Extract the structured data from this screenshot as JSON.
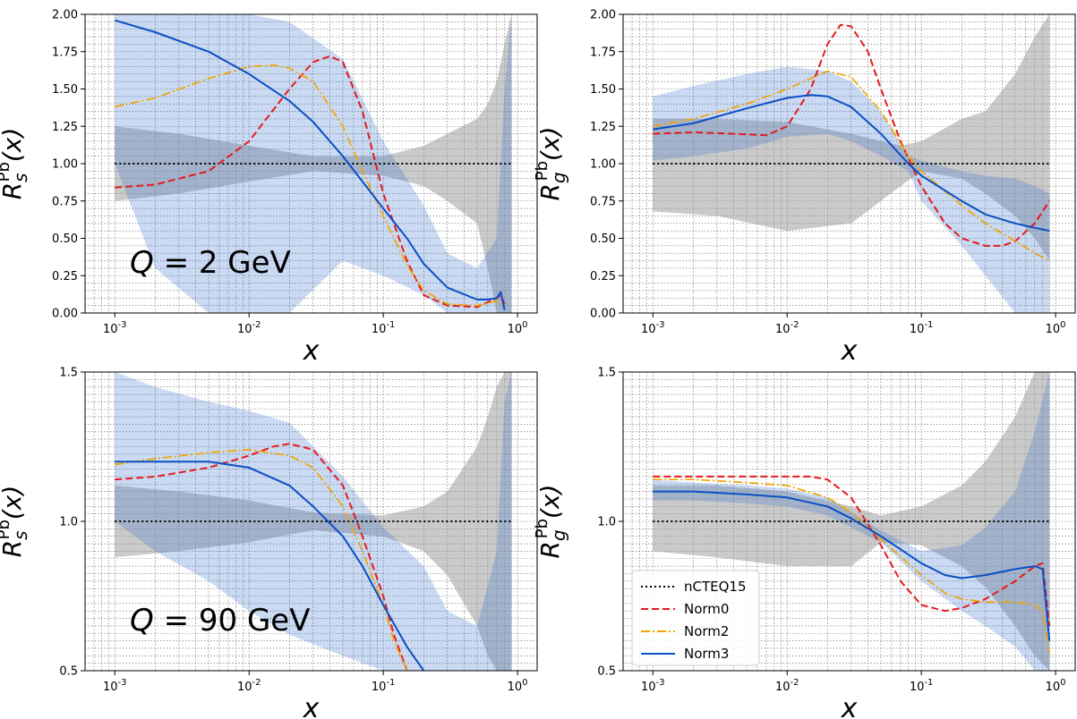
{
  "chart_data": [
    {
      "type": "line",
      "panel": "Rs-2GeV",
      "xscale": "log",
      "xlim": [
        0.0006,
        1.4
      ],
      "ylim": [
        0.0,
        2.0
      ],
      "yticks": [
        "0.00",
        "0.25",
        "0.50",
        "0.75",
        "1.00",
        "1.25",
        "1.50",
        "1.75",
        "2.00"
      ],
      "xticks": [
        "10^-3",
        "10^-2",
        "10^-1",
        "10^0"
      ],
      "xlabel": "x",
      "ylabel": {
        "base": "R",
        "sub": "s",
        "sup": "Pb",
        "arg": "(x)"
      },
      "annotation": "Q = 2 GeV",
      "grid": true,
      "bands": [
        {
          "name": "nCTEQ15",
          "color": "#9e9e9e",
          "opacity": 0.55,
          "x": [
            0.001,
            0.003,
            0.01,
            0.03,
            0.1,
            0.2,
            0.3,
            0.5,
            0.6,
            0.7,
            0.8,
            0.9
          ],
          "upper": [
            1.25,
            1.2,
            1.12,
            1.05,
            1.05,
            1.12,
            1.2,
            1.3,
            1.4,
            1.55,
            1.8,
            2.0
          ],
          "lower": [
            0.75,
            0.8,
            0.88,
            0.95,
            0.92,
            0.85,
            0.75,
            0.6,
            0.3,
            0.0,
            0.0,
            0.0
          ]
        },
        {
          "name": "Norm3",
          "color": "#2f6bd1",
          "opacity": 0.25,
          "x": [
            0.001,
            0.002,
            0.005,
            0.01,
            0.02,
            0.05,
            0.1,
            0.2,
            0.3,
            0.5,
            0.7,
            0.8,
            0.9
          ],
          "upper": [
            2.0,
            2.0,
            2.0,
            2.0,
            1.95,
            1.7,
            1.15,
            0.72,
            0.4,
            0.3,
            0.5,
            1.5,
            2.0
          ],
          "lower": [
            1.0,
            0.3,
            0.0,
            0.0,
            0.0,
            0.35,
            0.25,
            0.12,
            0.0,
            0.0,
            0.0,
            0.0,
            0.0
          ]
        }
      ],
      "series": [
        {
          "name": "nCTEQ15",
          "x": [
            0.001,
            0.9
          ],
          "y": [
            1.0,
            1.0
          ]
        },
        {
          "name": "Norm0",
          "x": [
            0.001,
            0.002,
            0.005,
            0.01,
            0.02,
            0.03,
            0.04,
            0.05,
            0.07,
            0.1,
            0.15,
            0.2,
            0.3,
            0.5,
            0.7,
            0.75,
            0.8
          ],
          "y": [
            0.84,
            0.86,
            0.95,
            1.15,
            1.5,
            1.68,
            1.72,
            1.68,
            1.35,
            0.8,
            0.35,
            0.12,
            0.05,
            0.04,
            0.1,
            0.12,
            0.06
          ]
        },
        {
          "name": "Norm2",
          "x": [
            0.001,
            0.002,
            0.005,
            0.01,
            0.015,
            0.02,
            0.03,
            0.05,
            0.07,
            0.1,
            0.15,
            0.2,
            0.3,
            0.5,
            0.7,
            0.8
          ],
          "y": [
            1.38,
            1.44,
            1.57,
            1.65,
            1.66,
            1.64,
            1.55,
            1.25,
            0.95,
            0.65,
            0.32,
            0.15,
            0.06,
            0.05,
            0.08,
            0.05
          ]
        },
        {
          "name": "Norm3",
          "x": [
            0.001,
            0.002,
            0.005,
            0.01,
            0.02,
            0.03,
            0.05,
            0.07,
            0.1,
            0.15,
            0.2,
            0.3,
            0.5,
            0.6,
            0.7,
            0.75,
            0.8
          ],
          "y": [
            1.96,
            1.88,
            1.75,
            1.6,
            1.42,
            1.28,
            1.05,
            0.88,
            0.7,
            0.5,
            0.33,
            0.17,
            0.09,
            0.09,
            0.1,
            0.14,
            0.02
          ]
        }
      ]
    },
    {
      "type": "line",
      "panel": "Rg-2GeV",
      "xscale": "log",
      "xlim": [
        0.0006,
        1.4
      ],
      "ylim": [
        0.0,
        2.0
      ],
      "yticks": [
        "0.00",
        "0.25",
        "0.50",
        "0.75",
        "1.00",
        "1.25",
        "1.50",
        "1.75",
        "2.00"
      ],
      "xticks": [
        "10^-3",
        "10^-2",
        "10^-1",
        "10^0"
      ],
      "xlabel": "x",
      "ylabel": {
        "base": "R",
        "sub": "g",
        "sup": "Pb",
        "arg": "(x)"
      },
      "grid": true,
      "bands": [
        {
          "name": "nCTEQ15",
          "color": "#9e9e9e",
          "opacity": 0.55,
          "x": [
            0.001,
            0.003,
            0.01,
            0.03,
            0.07,
            0.1,
            0.2,
            0.3,
            0.5,
            0.7,
            0.9
          ],
          "upper": [
            1.3,
            1.3,
            1.28,
            1.2,
            1.12,
            1.15,
            1.3,
            1.35,
            1.6,
            1.85,
            2.0
          ],
          "lower": [
            0.68,
            0.65,
            0.55,
            0.6,
            0.85,
            0.95,
            0.9,
            0.8,
            0.65,
            0.5,
            0.35
          ]
        },
        {
          "name": "Norm3",
          "color": "#2f6bd1",
          "opacity": 0.25,
          "x": [
            0.001,
            0.002,
            0.005,
            0.01,
            0.02,
            0.03,
            0.05,
            0.08,
            0.1,
            0.2,
            0.3,
            0.5,
            0.7,
            0.9
          ],
          "upper": [
            1.45,
            1.52,
            1.6,
            1.65,
            1.62,
            1.55,
            1.35,
            1.05,
            1.02,
            0.95,
            0.92,
            0.9,
            0.85,
            0.8
          ],
          "lower": [
            1.02,
            1.05,
            1.1,
            1.18,
            1.2,
            1.15,
            1.05,
            0.95,
            0.75,
            0.45,
            0.25,
            0.0,
            0.0,
            0.0
          ]
        }
      ],
      "series": [
        {
          "name": "nCTEQ15",
          "x": [
            0.001,
            0.9
          ],
          "y": [
            1.0,
            1.0
          ]
        },
        {
          "name": "Norm0",
          "x": [
            0.001,
            0.002,
            0.004,
            0.007,
            0.01,
            0.015,
            0.02,
            0.025,
            0.03,
            0.04,
            0.05,
            0.07,
            0.1,
            0.15,
            0.2,
            0.3,
            0.4,
            0.5,
            0.7,
            0.9
          ],
          "y": [
            1.2,
            1.21,
            1.2,
            1.19,
            1.25,
            1.5,
            1.8,
            1.93,
            1.92,
            1.75,
            1.5,
            1.15,
            0.85,
            0.6,
            0.5,
            0.45,
            0.45,
            0.48,
            0.6,
            0.75
          ]
        },
        {
          "name": "Norm2",
          "x": [
            0.001,
            0.002,
            0.005,
            0.01,
            0.02,
            0.03,
            0.05,
            0.08,
            0.1,
            0.2,
            0.3,
            0.5,
            0.7,
            0.9
          ],
          "y": [
            1.25,
            1.3,
            1.4,
            1.5,
            1.62,
            1.58,
            1.35,
            1.05,
            0.95,
            0.72,
            0.6,
            0.48,
            0.4,
            0.35
          ]
        },
        {
          "name": "Norm3",
          "x": [
            0.001,
            0.002,
            0.005,
            0.01,
            0.015,
            0.02,
            0.03,
            0.05,
            0.08,
            0.1,
            0.2,
            0.3,
            0.5,
            0.7,
            0.9
          ],
          "y": [
            1.23,
            1.27,
            1.37,
            1.44,
            1.46,
            1.45,
            1.38,
            1.2,
            1.0,
            0.92,
            0.75,
            0.66,
            0.6,
            0.57,
            0.55
          ]
        }
      ]
    },
    {
      "type": "line",
      "panel": "Rs-90GeV",
      "xscale": "log",
      "xlim": [
        0.0006,
        1.4
      ],
      "ylim": [
        0.5,
        1.5
      ],
      "yticks": [
        "0.5",
        "1.0",
        "1.5"
      ],
      "xticks": [
        "10^-3",
        "10^-2",
        "10^-1",
        "10^0"
      ],
      "xlabel": "x",
      "ylabel": {
        "base": "R",
        "sub": "s",
        "sup": "Pb",
        "arg": "(x)"
      },
      "annotation": "Q = 90 GeV",
      "grid": true,
      "bands": [
        {
          "name": "nCTEQ15",
          "color": "#9e9e9e",
          "opacity": 0.55,
          "x": [
            0.001,
            0.003,
            0.01,
            0.03,
            0.1,
            0.2,
            0.3,
            0.5,
            0.6,
            0.7,
            0.8,
            0.9
          ],
          "upper": [
            1.12,
            1.1,
            1.07,
            1.03,
            1.02,
            1.05,
            1.1,
            1.25,
            1.35,
            1.45,
            1.5,
            1.5
          ],
          "lower": [
            0.88,
            0.9,
            0.93,
            0.97,
            0.95,
            0.9,
            0.82,
            0.65,
            0.55,
            0.5,
            0.5,
            0.5
          ]
        },
        {
          "name": "Norm3",
          "color": "#2f6bd1",
          "opacity": 0.25,
          "x": [
            0.001,
            0.002,
            0.005,
            0.01,
            0.02,
            0.05,
            0.1,
            0.2,
            0.3,
            0.5,
            0.7,
            0.8,
            0.9
          ],
          "upper": [
            1.5,
            1.45,
            1.4,
            1.37,
            1.33,
            1.15,
            0.98,
            0.85,
            0.7,
            0.65,
            0.9,
            1.4,
            1.5
          ],
          "lower": [
            1.0,
            0.9,
            0.8,
            0.7,
            0.62,
            0.55,
            0.5,
            0.5,
            0.5,
            0.5,
            0.5,
            0.5,
            0.5
          ]
        }
      ],
      "series": [
        {
          "name": "nCTEQ15",
          "x": [
            0.001,
            0.9
          ],
          "y": [
            1.0,
            1.0
          ]
        },
        {
          "name": "Norm0",
          "x": [
            0.001,
            0.002,
            0.005,
            0.01,
            0.015,
            0.02,
            0.03,
            0.05,
            0.07,
            0.1,
            0.12,
            0.15
          ],
          "y": [
            1.14,
            1.15,
            1.18,
            1.22,
            1.25,
            1.26,
            1.24,
            1.12,
            0.95,
            0.75,
            0.62,
            0.5
          ]
        },
        {
          "name": "Norm2",
          "x": [
            0.001,
            0.002,
            0.005,
            0.01,
            0.02,
            0.03,
            0.05,
            0.07,
            0.1,
            0.12,
            0.15
          ],
          "y": [
            1.19,
            1.21,
            1.23,
            1.24,
            1.22,
            1.18,
            1.05,
            0.9,
            0.72,
            0.6,
            0.5
          ]
        },
        {
          "name": "Norm3",
          "x": [
            0.001,
            0.002,
            0.005,
            0.01,
            0.02,
            0.03,
            0.05,
            0.07,
            0.1,
            0.15,
            0.2
          ],
          "y": [
            1.2,
            1.2,
            1.2,
            1.18,
            1.12,
            1.05,
            0.95,
            0.85,
            0.72,
            0.58,
            0.5
          ]
        }
      ]
    },
    {
      "type": "line",
      "panel": "Rg-90GeV",
      "xscale": "log",
      "xlim": [
        0.0006,
        1.4
      ],
      "ylim": [
        0.5,
        1.5
      ],
      "yticks": [
        "0.5",
        "1.0",
        "1.5"
      ],
      "xticks": [
        "10^-3",
        "10^-2",
        "10^-1",
        "10^0"
      ],
      "xlabel": "x",
      "ylabel": {
        "base": "R",
        "sub": "g",
        "sup": "Pb",
        "arg": "(x)"
      },
      "legend": "lower-left",
      "grid": true,
      "bands": [
        {
          "name": "nCTEQ15",
          "color": "#9e9e9e",
          "opacity": 0.55,
          "x": [
            0.001,
            0.003,
            0.01,
            0.03,
            0.05,
            0.1,
            0.2,
            0.3,
            0.5,
            0.7,
            0.9
          ],
          "upper": [
            1.12,
            1.12,
            1.1,
            1.05,
            1.02,
            1.05,
            1.12,
            1.2,
            1.35,
            1.5,
            1.5
          ],
          "lower": [
            0.9,
            0.88,
            0.85,
            0.85,
            0.93,
            0.92,
            0.85,
            0.78,
            0.65,
            0.55,
            0.5
          ]
        },
        {
          "name": "Norm3",
          "color": "#2f6bd1",
          "opacity": 0.25,
          "x": [
            0.001,
            0.002,
            0.005,
            0.01,
            0.02,
            0.05,
            0.1,
            0.2,
            0.3,
            0.5,
            0.7,
            0.9
          ],
          "upper": [
            1.14,
            1.13,
            1.12,
            1.11,
            1.08,
            0.97,
            0.9,
            0.92,
            0.98,
            1.1,
            1.3,
            1.5
          ],
          "lower": [
            1.07,
            1.07,
            1.06,
            1.05,
            1.02,
            0.93,
            0.8,
            0.7,
            0.65,
            0.58,
            0.5,
            0.5
          ]
        }
      ],
      "series": [
        {
          "name": "nCTEQ15",
          "x": [
            0.001,
            0.9
          ],
          "y": [
            1.0,
            1.0
          ]
        },
        {
          "name": "Norm0",
          "x": [
            0.001,
            0.002,
            0.005,
            0.01,
            0.015,
            0.02,
            0.03,
            0.05,
            0.07,
            0.1,
            0.15,
            0.2,
            0.3,
            0.5,
            0.7,
            0.8,
            0.9
          ],
          "y": [
            1.15,
            1.15,
            1.15,
            1.15,
            1.15,
            1.14,
            1.08,
            0.92,
            0.8,
            0.72,
            0.7,
            0.71,
            0.74,
            0.8,
            0.85,
            0.86,
            0.65
          ]
        },
        {
          "name": "Norm2",
          "x": [
            0.001,
            0.002,
            0.005,
            0.01,
            0.02,
            0.03,
            0.05,
            0.1,
            0.15,
            0.2,
            0.3,
            0.5,
            0.7,
            0.8,
            0.9
          ],
          "y": [
            1.14,
            1.14,
            1.13,
            1.12,
            1.08,
            1.03,
            0.94,
            0.82,
            0.76,
            0.74,
            0.73,
            0.73,
            0.72,
            0.7,
            0.56
          ]
        },
        {
          "name": "Norm3",
          "x": [
            0.001,
            0.002,
            0.005,
            0.01,
            0.02,
            0.03,
            0.05,
            0.1,
            0.15,
            0.2,
            0.3,
            0.5,
            0.7,
            0.8,
            0.9
          ],
          "y": [
            1.1,
            1.1,
            1.09,
            1.08,
            1.05,
            1.01,
            0.95,
            0.86,
            0.82,
            0.81,
            0.82,
            0.84,
            0.85,
            0.84,
            0.6
          ]
        }
      ]
    }
  ],
  "legend": [
    {
      "label": "nCTEQ15",
      "color": "#000000",
      "dash": "2,3"
    },
    {
      "label": "Norm0",
      "color": "#e41a1c",
      "dash": "8,4"
    },
    {
      "label": "Norm2",
      "color": "#f0a500",
      "dash": "10,3,2,3"
    },
    {
      "label": "Norm3",
      "color": "#0b4fc4",
      "dash": ""
    }
  ],
  "styles": {
    "nCTEQ15": {
      "color": "#000000",
      "dash": "2,3",
      "width": 2
    },
    "Norm0": {
      "color": "#e41a1c",
      "dash": "8,4",
      "width": 2
    },
    "Norm2": {
      "color": "#f0a500",
      "dash": "10,3,2,3",
      "width": 1.7
    },
    "Norm3": {
      "color": "#0b4fc4",
      "dash": "",
      "width": 2
    }
  }
}
